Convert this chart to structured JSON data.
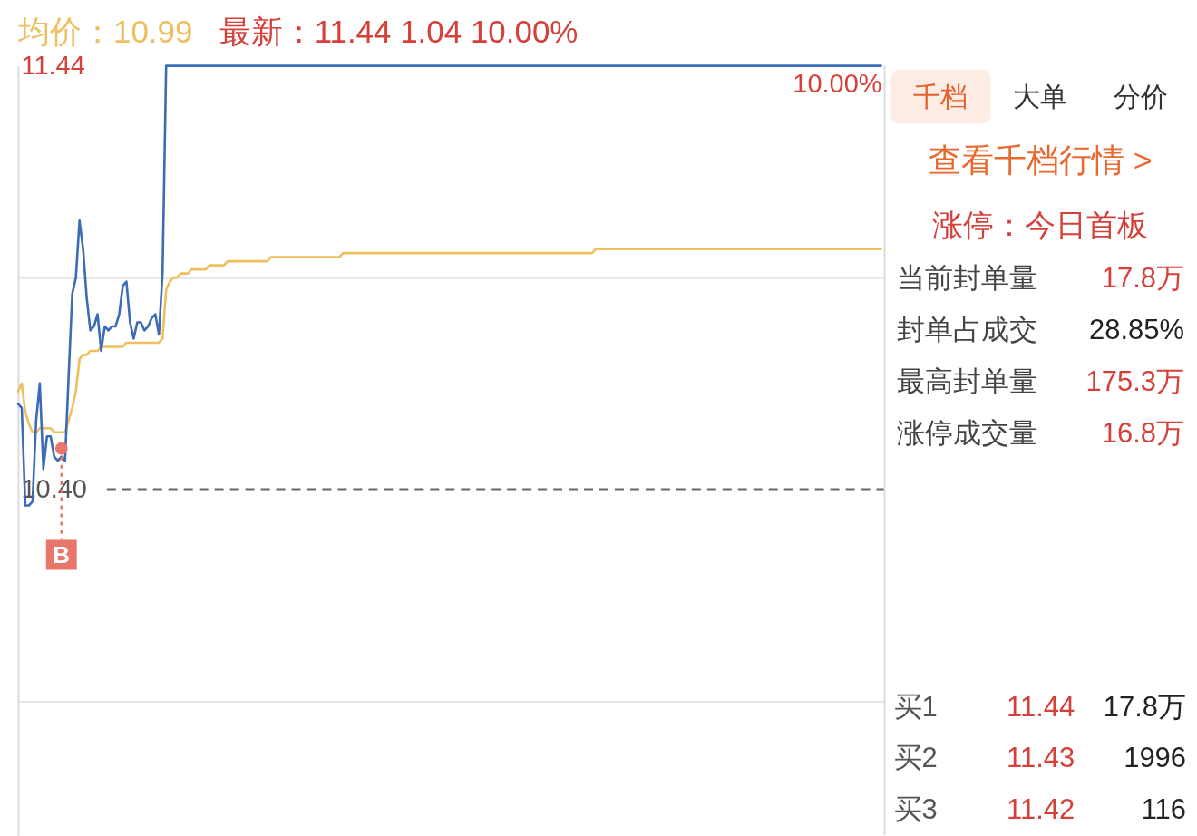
{
  "chart_data": [
    {
      "type": "line",
      "title": "均价：10.99",
      "subtitle": "最新：11.44 1.04 10.00%",
      "categories": [
        null,
        null,
        null,
        null,
        null,
        null,
        null,
        null,
        null,
        null,
        null,
        null,
        null,
        null,
        null,
        null,
        null,
        null,
        null,
        null,
        null,
        null,
        null,
        null,
        null,
        null,
        null,
        null,
        null,
        null,
        null,
        null,
        null,
        null,
        null,
        null,
        null,
        null,
        null,
        null,
        null,
        null,
        null,
        null,
        null,
        null,
        null,
        null,
        null,
        null,
        null,
        null,
        null,
        null,
        null,
        null,
        null,
        null,
        null,
        null,
        null,
        null,
        null,
        null,
        null,
        null,
        null,
        null,
        null,
        null,
        null,
        null,
        null,
        null,
        null,
        null,
        null,
        null,
        null,
        null,
        null,
        null,
        null,
        null,
        null,
        null,
        null,
        null,
        null,
        null,
        null,
        null,
        null,
        null,
        null,
        null,
        null,
        null,
        null,
        null,
        null,
        null,
        null,
        null,
        null,
        null,
        null,
        null,
        null,
        null,
        null,
        null,
        null,
        null,
        null,
        null,
        null,
        null,
        null,
        null,
        null,
        null,
        null,
        null,
        null,
        null,
        null,
        null,
        null,
        null,
        null,
        null,
        null,
        null,
        null,
        null,
        null,
        null,
        null,
        null,
        null,
        null,
        null,
        null,
        null,
        null,
        null,
        null,
        null,
        null,
        null,
        null,
        null,
        null,
        null,
        null,
        null,
        null,
        null,
        null,
        null,
        null,
        null,
        null,
        null,
        null,
        null,
        null,
        null,
        null,
        null,
        null,
        null,
        null,
        null,
        null,
        null,
        null,
        null,
        null,
        null,
        null,
        null,
        null,
        null,
        null,
        null,
        null,
        null,
        null,
        null,
        null,
        null,
        null,
        null,
        null,
        null,
        null,
        null,
        null,
        null,
        null,
        null,
        null,
        null,
        null,
        null,
        null,
        null,
        null,
        null,
        null,
        null,
        null,
        null,
        null,
        null,
        null,
        null,
        null,
        null,
        null,
        null,
        null,
        null,
        null,
        null,
        null,
        null,
        null,
        null,
        null,
        null,
        null,
        null,
        null,
        null,
        null,
        null,
        null,
        null
      ],
      "ylim": [
        9.55,
        11.44
      ],
      "yticks": [
        11.44,
        {
          "value": 10.92,
          "label": null
        },
        {
          "value": 10.4,
          "label": "10.40"
        },
        {
          "value": 9.88,
          "label": null
        }
      ],
      "tick_labels": "y",
      "grid": "y",
      "series": [
        {
          "color": "#eebf5e",
          "values": [
            10.64,
            10.66,
            10.59,
            10.56,
            10.54,
            10.54,
            10.55,
            10.55,
            10.55,
            10.55,
            10.54,
            10.54,
            10.54,
            10.54,
            10.57,
            10.6,
            10.64,
            10.72,
            10.73,
            10.73,
            10.74,
            10.74,
            10.74,
            10.75,
            10.75,
            10.75,
            10.75,
            10.75,
            10.75,
            10.75,
            10.76,
            10.76,
            10.76,
            10.76,
            10.76,
            10.76,
            10.76,
            10.76,
            10.76,
            10.76,
            10.77,
            10.89,
            10.91,
            10.92,
            10.92,
            10.93,
            10.93,
            10.93,
            10.94,
            10.94,
            10.94,
            10.94,
            10.94,
            10.95,
            10.95,
            10.95,
            10.95,
            10.95,
            10.96,
            10.96,
            10.96,
            10.96,
            10.96,
            10.96,
            10.96,
            10.96,
            10.96,
            10.96,
            10.96,
            10.96,
            10.97,
            10.97,
            10.97,
            10.97,
            10.97,
            10.97,
            10.97,
            10.97,
            10.97,
            10.97,
            10.97,
            10.97,
            10.97,
            10.97,
            10.97,
            10.97,
            10.97,
            10.97,
            10.97,
            10.97,
            10.98,
            10.98,
            10.98,
            10.98,
            10.98,
            10.98,
            10.98,
            10.98,
            10.98,
            10.98,
            10.98,
            10.98,
            10.98,
            10.98,
            10.98,
            10.98,
            10.98,
            10.98,
            10.98,
            10.98,
            10.98,
            10.98,
            10.98,
            10.98,
            10.98,
            10.98,
            10.98,
            10.98,
            10.98,
            10.98,
            10.98,
            10.98,
            10.98,
            10.98,
            10.98,
            10.98,
            10.98,
            10.98,
            10.98,
            10.98,
            10.98,
            10.98,
            10.98,
            10.98,
            10.98,
            10.98,
            10.98,
            10.98,
            10.98,
            10.98,
            10.98,
            10.98,
            10.98,
            10.98,
            10.98,
            10.98,
            10.98,
            10.98,
            10.98,
            10.98,
            10.98,
            10.98,
            10.98,
            10.98,
            10.98,
            10.98,
            10.98,
            10.98,
            10.98,
            10.98,
            10.99,
            10.99,
            10.99,
            10.99,
            10.99,
            10.99,
            10.99,
            10.99,
            10.99,
            10.99,
            10.99,
            10.99,
            10.99,
            10.99,
            10.99,
            10.99,
            10.99,
            10.99,
            10.99,
            10.99,
            10.99,
            10.99,
            10.99,
            10.99,
            10.99,
            10.99,
            10.99,
            10.99,
            10.99,
            10.99,
            10.99,
            10.99,
            10.99,
            10.99,
            10.99,
            10.99,
            10.99,
            10.99,
            10.99,
            10.99,
            10.99,
            10.99,
            10.99,
            10.99,
            10.99,
            10.99,
            10.99,
            10.99,
            10.99,
            10.99,
            10.99,
            10.99,
            10.99,
            10.99,
            10.99,
            10.99,
            10.99,
            10.99,
            10.99,
            10.99,
            10.99,
            10.99,
            10.99,
            10.99,
            10.99,
            10.99,
            10.99,
            10.99,
            10.99,
            10.99,
            10.99,
            10.99,
            10.99,
            10.99,
            10.99,
            10.99,
            10.99,
            10.99,
            10.99,
            10.99,
            null
          ]
        },
        {
          "color": "#3b6cb5",
          "values": [
            10.61,
            10.6,
            10.36,
            10.36,
            10.37,
            10.57,
            10.66,
            10.45,
            10.53,
            10.53,
            10.48,
            10.47,
            10.48,
            10.47,
            10.68,
            10.88,
            10.92,
            11.06,
            10.99,
            10.87,
            10.79,
            10.8,
            10.83,
            10.74,
            10.8,
            10.79,
            10.8,
            10.8,
            10.83,
            10.9,
            10.91,
            10.81,
            10.77,
            10.81,
            10.81,
            10.79,
            10.8,
            10.82,
            10.83,
            10.78,
            10.93,
            11.44,
            11.44,
            11.44,
            11.44,
            11.44,
            11.44,
            11.44,
            11.44,
            11.44,
            11.44,
            11.44,
            11.44,
            11.44,
            11.44,
            11.44,
            11.44,
            11.44,
            11.44,
            11.44,
            11.44,
            11.44,
            11.44,
            11.44,
            11.44,
            11.44,
            11.44,
            11.44,
            11.44,
            11.44,
            11.44,
            11.44,
            11.44,
            11.44,
            11.44,
            11.44,
            11.44,
            11.44,
            11.44,
            11.44,
            11.44,
            11.44,
            11.44,
            11.44,
            11.44,
            11.44,
            11.44,
            11.44,
            11.44,
            11.44,
            11.44,
            11.44,
            11.44,
            11.44,
            11.44,
            11.44,
            11.44,
            11.44,
            11.44,
            11.44,
            11.44,
            11.44,
            11.44,
            11.44,
            11.44,
            11.44,
            11.44,
            11.44,
            11.44,
            11.44,
            11.44,
            11.44,
            11.44,
            11.44,
            11.44,
            11.44,
            11.44,
            11.44,
            11.44,
            11.44,
            11.44,
            11.44,
            11.44,
            11.44,
            11.44,
            11.44,
            11.44,
            11.44,
            11.44,
            11.44,
            11.44,
            11.44,
            11.44,
            11.44,
            11.44,
            11.44,
            11.44,
            11.44,
            11.44,
            11.44,
            11.44,
            11.44,
            11.44,
            11.44,
            11.44,
            11.44,
            11.44,
            11.44,
            11.44,
            11.44,
            11.44,
            11.44,
            11.44,
            11.44,
            11.44,
            11.44,
            11.44,
            11.44,
            11.44,
            11.44,
            11.44,
            11.44,
            11.44,
            11.44,
            11.44,
            11.44,
            11.44,
            11.44,
            11.44,
            11.44,
            11.44,
            11.44,
            11.44,
            11.44,
            11.44,
            11.44,
            11.44,
            11.44,
            11.44,
            11.44,
            11.44,
            11.44,
            11.44,
            11.44,
            11.44,
            11.44,
            11.44,
            11.44,
            11.44,
            11.44,
            11.44,
            11.44,
            11.44,
            11.44,
            11.44,
            11.44,
            11.44,
            11.44,
            11.44,
            11.44,
            11.44,
            11.44,
            11.44,
            11.44,
            11.44,
            11.44,
            11.44,
            11.44,
            11.44,
            11.44,
            11.44,
            11.44,
            11.44,
            11.44,
            11.44,
            11.44,
            11.44,
            11.44,
            11.44,
            11.44,
            11.44,
            11.44,
            11.44,
            11.44,
            11.44,
            11.44,
            11.44,
            11.44,
            11.44,
            11.44,
            11.44,
            11.44,
            11.44,
            11.44,
            11.44,
            11.44,
            11.44,
            11.44,
            11.44,
            11.44,
            null
          ]
        },
        {
          "type": "scatter",
          "name": "B",
          "color": "#e8766a",
          "values": [
            null,
            null,
            null,
            null,
            null,
            null,
            null,
            null,
            null,
            null,
            null,
            null,
            10.5,
            null,
            null,
            null,
            null,
            null,
            null,
            null,
            null,
            null,
            null,
            null,
            null,
            null,
            null,
            null,
            null,
            null,
            null,
            null,
            null,
            null,
            null,
            null,
            null,
            null,
            null,
            null,
            null,
            null,
            null,
            null,
            null,
            null,
            null,
            null,
            null,
            null,
            null,
            null,
            null,
            null,
            null,
            null,
            null,
            null,
            null,
            null,
            null,
            null,
            null,
            null,
            null,
            null,
            null,
            null,
            null,
            null,
            null,
            null,
            null,
            null,
            null,
            null,
            null,
            null,
            null,
            null,
            null,
            null,
            null,
            null,
            null,
            null,
            null,
            null,
            null,
            null,
            null,
            null,
            null,
            null,
            null,
            null,
            null,
            null,
            null,
            null,
            null,
            null,
            null,
            null,
            null,
            null,
            null,
            null,
            null,
            null,
            null,
            null,
            null,
            null,
            null,
            null,
            null,
            null,
            null,
            null,
            null,
            null,
            null,
            null,
            null,
            null,
            null,
            null,
            null,
            null,
            null,
            null,
            null,
            null,
            null,
            null,
            null,
            null,
            null,
            null,
            null,
            null,
            null,
            null,
            null,
            null,
            null,
            null,
            null,
            null,
            null,
            null,
            null,
            null,
            null,
            null,
            null,
            null,
            null,
            null,
            null,
            null,
            null,
            null,
            null,
            null,
            null,
            null,
            null,
            null,
            null,
            null,
            null,
            null,
            null,
            null,
            null,
            null,
            null,
            null,
            null,
            null,
            null,
            null,
            null,
            null,
            null,
            null,
            null,
            null,
            null,
            null,
            null,
            null,
            null,
            null,
            null,
            null,
            null,
            null,
            null,
            null,
            null,
            null,
            null,
            null,
            null,
            null,
            null,
            null,
            null,
            null,
            null,
            null,
            null,
            null,
            null,
            null,
            null,
            null,
            null,
            null,
            null,
            null,
            null,
            null,
            null,
            null,
            null,
            null,
            null,
            null,
            null,
            null,
            null,
            null,
            null,
            null,
            null,
            null,
            null
          ]
        }
      ],
      "ref_lines": [
        {
          "axis": "y",
          "value": 10.4,
          "color": "#666666",
          "line_style": "dashed"
        }
      ],
      "annotations": [
        "10.00%"
      ]
    },
    {
      "type": "other",
      "annotations": [
        "千档",
        "大单",
        "分价",
        "查看千档行情 >",
        "涨停：今日首板",
        "当前封单量",
        "17.8万",
        "封单占成交",
        "28.85%",
        "最高封单量",
        "175.3万",
        "涨停成交量",
        "16.8万",
        "买1",
        "11.44",
        "17.8万",
        "买2",
        "11.43",
        "1996",
        "买3",
        "11.42",
        "116"
      ]
    }
  ]
}
